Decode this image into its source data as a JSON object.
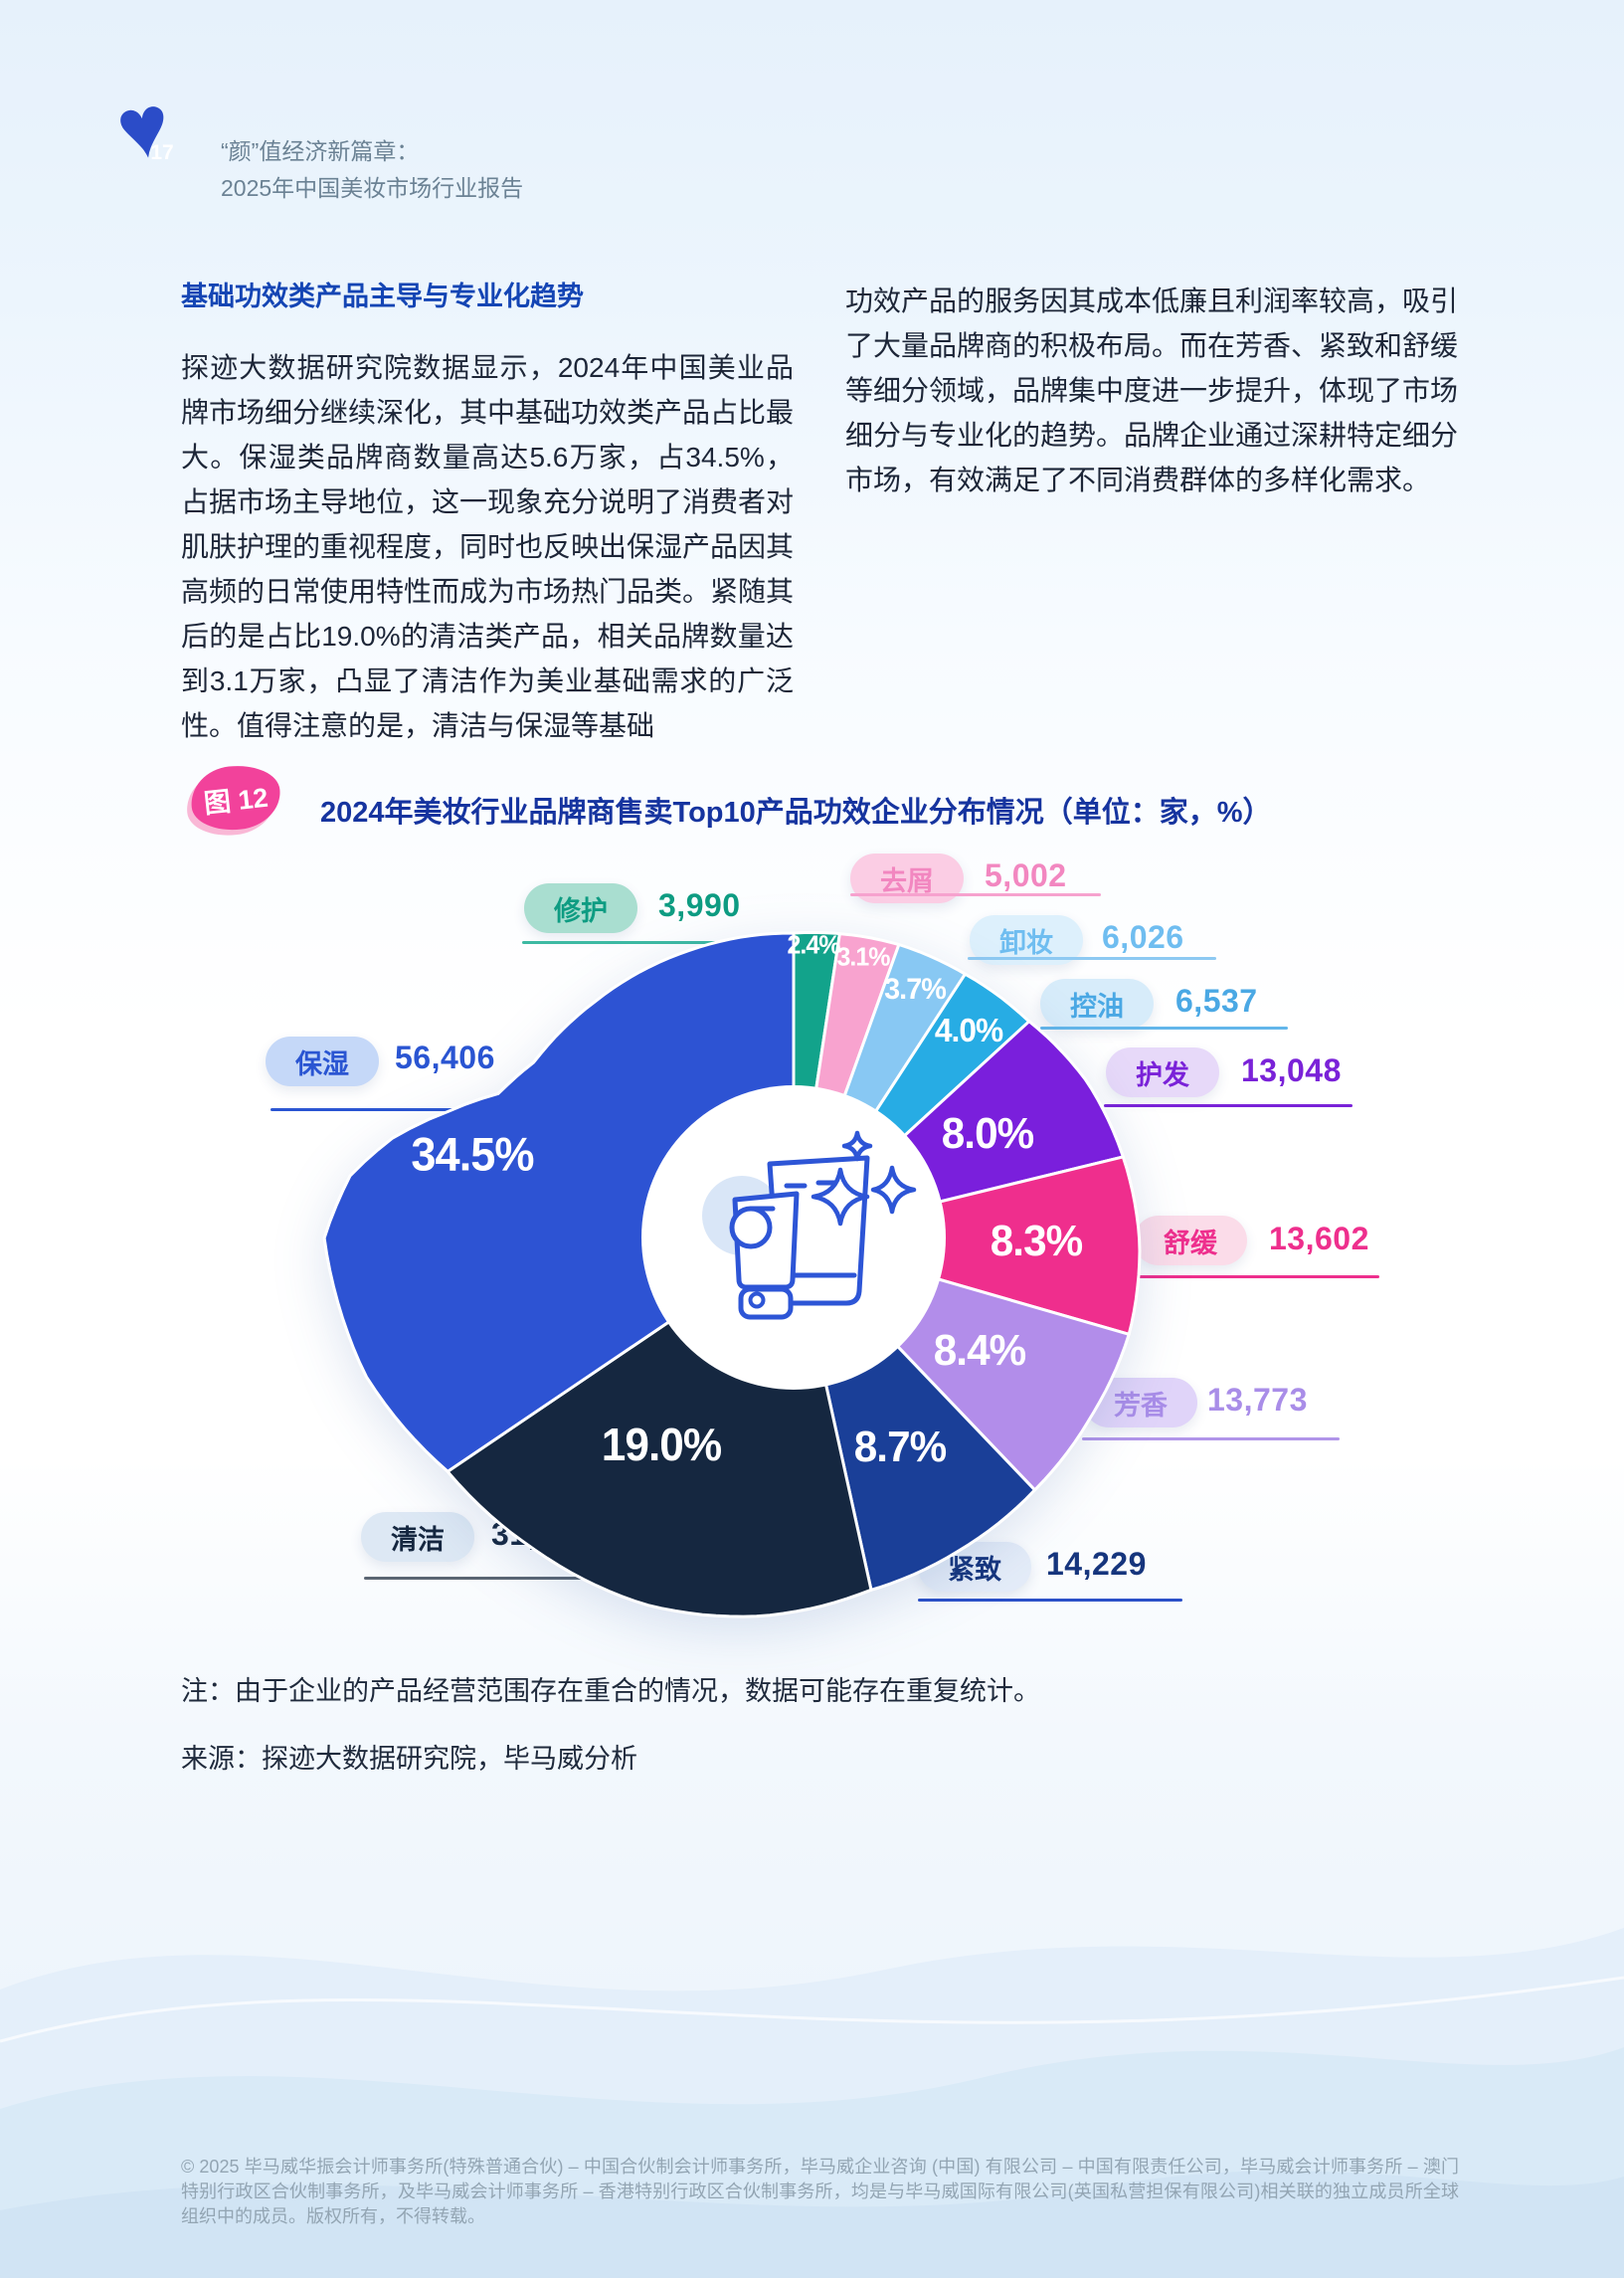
{
  "page": {
    "number": "17",
    "header_line1": "“颜”值经济新篇章：",
    "header_line2": "2025年中国美妆市场行业报告"
  },
  "article": {
    "heading": "基础功效类产品主导与专业化趋势",
    "left_paragraph": "探迹大数据研究院数据显示，2024年中国美业品牌市场细分继续深化，其中基础功效类产品占比最大。保湿类品牌商数量高达5.6万家，占34.5%，占据市场主导地位，这一现象充分说明了消费者对肌肤护理的重视程度，同时也反映出保湿产品因其高频的日常使用特性而成为市场热门品类。紧随其后的是占比19.0%的清洁类产品，相关品牌数量达到3.1万家，凸显了清洁作为美业基础需求的广泛性。值得注意的是，清洁与保湿等基础",
    "right_paragraph": "功效产品的服务因其成本低廉且利润率较高，吸引了大量品牌商的积极布局。而在芳香、紧致和舒缓等细分领域，品牌集中度进一步提升，体现了市场细分与专业化的趋势。品牌企业通过深耕特定细分市场，有效满足了不同消费群体的多样化需求。",
    "note": "注：由于企业的产品经营范围存在重合的情况，数据可能存在重复统计。",
    "source": "来源：探迹大数据研究院，毕马威分析"
  },
  "figure": {
    "badge": "图 12",
    "title": "2024年美妆行业品牌商售卖Top10产品功效企业分布情况（单位：家，%）"
  },
  "chart_data": {
    "type": "pie",
    "variant": "rose-donut",
    "title": "2024年美妆行业品牌商售卖Top10产品功效企业分布情况",
    "unit": "家，%",
    "legend_position": "around",
    "slices": [
      {
        "id": "repair",
        "label": "修护",
        "value": 3990,
        "value_text": "3,990",
        "pct": 2.4,
        "pct_text": "2.4%",
        "color": "#12a38b",
        "pill_bg": "#a9ded0",
        "text_color": "#0e9c82",
        "line_color": "#3db9a2"
      },
      {
        "id": "anti-dandruff",
        "label": "去屑",
        "value": 5002,
        "value_text": "5,002",
        "pct": 3.1,
        "pct_text": "3.1%",
        "color": "#f8a3cf",
        "pill_bg": "#fbcde4",
        "text_color": "#f287c0",
        "line_color": "#f6a2ce"
      },
      {
        "id": "makeup-removal",
        "label": "卸妆",
        "value": 6026,
        "value_text": "6,026",
        "pct": 3.7,
        "pct_text": "3.7%",
        "color": "#88c8f3",
        "pill_bg": "#ddf0fc",
        "text_color": "#6fbdf0",
        "line_color": "#8ec9f2"
      },
      {
        "id": "oil-control",
        "label": "控油",
        "value": 6537,
        "value_text": "6,537",
        "pct": 4.0,
        "pct_text": "4.0%",
        "color": "#27ace4",
        "pill_bg": "#d7ecfa",
        "text_color": "#4aa8e4",
        "line_color": "#63b6ea"
      },
      {
        "id": "hair-care",
        "label": "护发",
        "value": 13048,
        "value_text": "13,048",
        "pct": 8.0,
        "pct_text": "8.0%",
        "color": "#7a1fdc",
        "pill_bg": "#e7d9f9",
        "text_color": "#7a22d8",
        "line_color": "#7a22d8"
      },
      {
        "id": "soothing",
        "label": "舒缓",
        "value": 13602,
        "value_text": "13,602",
        "pct": 8.3,
        "pct_text": "8.3%",
        "color": "#ef2e8d",
        "pill_bg": "#fbdce9",
        "text_color": "#ee2f8d",
        "line_color": "#ee2f8d"
      },
      {
        "id": "fragrance",
        "label": "芳香",
        "value": 13773,
        "value_text": "13,773",
        "pct": 8.4,
        "pct_text": "8.4%",
        "color": "#b28dea",
        "pill_bg": "#e0d4f9",
        "text_color": "#a98de8",
        "line_color": "#b195e9"
      },
      {
        "id": "firming",
        "label": "紧致",
        "value": 14229,
        "value_text": "14,229",
        "pct": 8.7,
        "pct_text": "8.7%",
        "color": "#1a3f98",
        "pill_bg": "#e4ecf8",
        "text_color": "#16357d",
        "line_color": "#2b50c8"
      },
      {
        "id": "cleansing",
        "label": "清洁",
        "value": 31026,
        "value_text": "31,026",
        "pct": 19.0,
        "pct_text": "19.0%",
        "color": "#152740",
        "pill_bg": "#dde8f4",
        "text_color": "#152740",
        "line_color": "#5b6673"
      },
      {
        "id": "moisturizing",
        "label": "保湿",
        "value": 56406,
        "value_text": "56,406",
        "pct": 34.5,
        "pct_text": "34.5%",
        "color": "#2d53d3",
        "pill_bg": "#c5d8f8",
        "text_color": "#2a55d2",
        "line_color": "#2a55d2"
      }
    ]
  },
  "footer": {
    "copyright": "© 2025 毕马威华振会计师事务所(特殊普通合伙) – 中国合伙制会计师事务所，毕马威企业咨询 (中国) 有限公司 – 中国有限责任公司，毕马威会计师事务所 – 澳门特别行政区合伙制事务所，及毕马威会计师事务所 – 香港特别行政区合伙制事务所，均是与毕马威国际有限公司(英国私营担保有限公司)相关联的独立成员所全球组织中的成员。版权所有，不得转载。"
  },
  "colors": {
    "accent_blue": "#2d53d3",
    "heading_blue": "#1445b4",
    "title_blue": "#16349f",
    "badge_pink": "#f2429b",
    "body_text": "#1d2638",
    "header_text": "#6b8294",
    "footer_text": "#93a5b3",
    "icon_stroke": "#2d55d6"
  }
}
